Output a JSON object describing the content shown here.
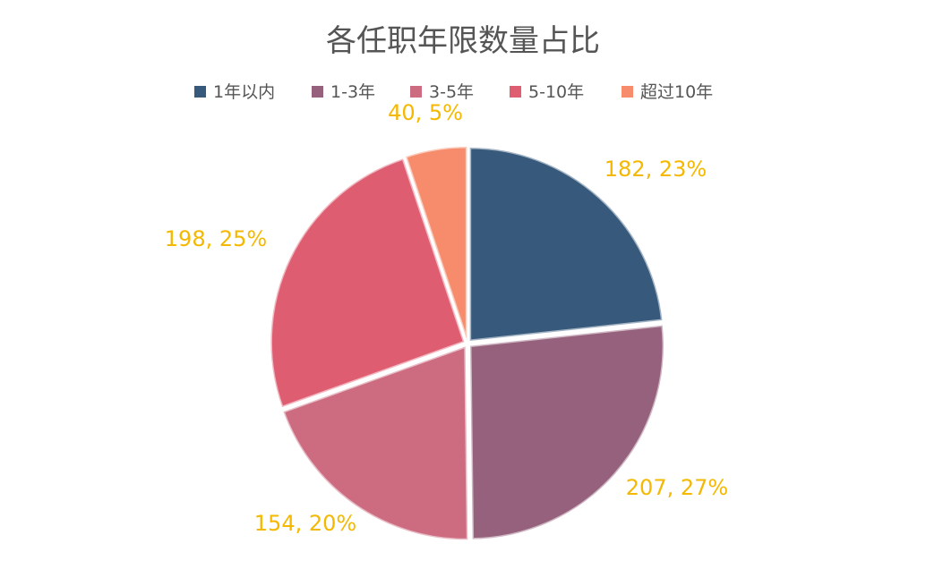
{
  "chart_data": {
    "type": "pie",
    "title": "各任职年限数量占比",
    "legend_position": "top",
    "categories": [
      "1年以内",
      "1-3年",
      "3-5年",
      "5-10年",
      "超过10年"
    ],
    "values": [
      182,
      207,
      154,
      198,
      40
    ],
    "percent_labels": [
      "23%",
      "27%",
      "20%",
      "25%",
      "5%"
    ],
    "data_labels": [
      "182, 23%",
      "207, 27%",
      "154, 20%",
      "198, 25%",
      "40, 5%"
    ],
    "colors": [
      "#375a7c",
      "#95617c",
      "#cd6c80",
      "#df5d71",
      "#f68c6c"
    ],
    "label_color": "#f5b800",
    "title_color": "#555555"
  }
}
